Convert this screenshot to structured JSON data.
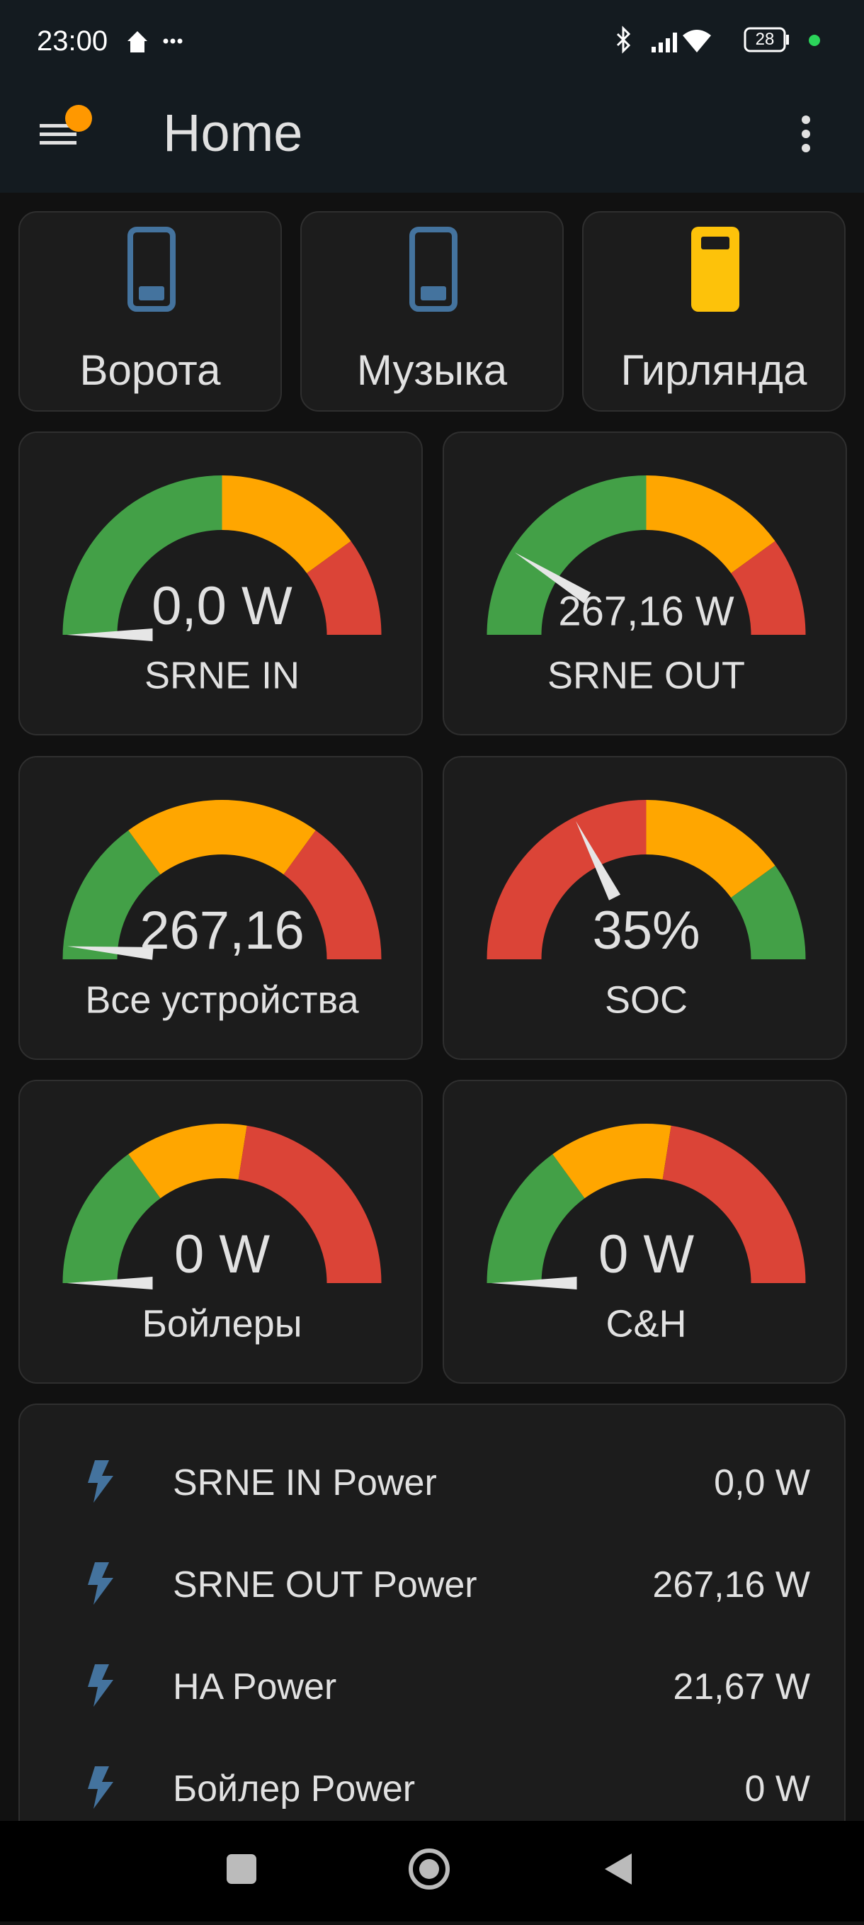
{
  "status_bar": {
    "time": "23:00",
    "battery": "28"
  },
  "header": {
    "title": "Home"
  },
  "buttons": [
    {
      "label": "Ворота"
    },
    {
      "label": "Музыка"
    },
    {
      "label": "Гирлянда"
    }
  ],
  "gauges": [
    {
      "name": "SRNE IN",
      "value": 0,
      "value_label": "0,0 W",
      "range": [
        0,
        2000
      ],
      "bands": [
        {
          "to": 1000,
          "color": "#43a047"
        },
        {
          "to": 1600,
          "color": "#ffa600"
        },
        {
          "to": 2000,
          "color": "#db4437"
        }
      ]
    },
    {
      "name": "SRNE OUT",
      "value": 267.16,
      "value_label": "267,16 W",
      "range": [
        0,
        1500
      ],
      "bands": [
        {
          "to": 750,
          "color": "#43a047"
        },
        {
          "to": 1200,
          "color": "#ffa600"
        },
        {
          "to": 1500,
          "color": "#db4437"
        }
      ]
    },
    {
      "name": "Все устройства",
      "value": 267.16,
      "value_label": "267,16",
      "range": [
        0,
        10000
      ],
      "bands": [
        {
          "to": 3000,
          "color": "#43a047"
        },
        {
          "to": 7000,
          "color": "#ffa600"
        },
        {
          "to": 10000,
          "color": "#db4437"
        }
      ]
    },
    {
      "name": "SOC",
      "value": 35,
      "value_label": "35%",
      "range": [
        0,
        100
      ],
      "bands": [
        {
          "to": 50,
          "color": "#db4437"
        },
        {
          "to": 80,
          "color": "#ffa600"
        },
        {
          "to": 100,
          "color": "#43a047"
        }
      ]
    },
    {
      "name": "Бойлеры",
      "value": 0,
      "value_label": "0 W",
      "range": [
        0,
        3000
      ],
      "bands": [
        {
          "to": 900,
          "color": "#43a047"
        },
        {
          "to": 1650,
          "color": "#ffa600"
        },
        {
          "to": 3000,
          "color": "#db4437"
        }
      ]
    },
    {
      "name": "C&H",
      "value": 0,
      "value_label": "0 W",
      "range": [
        0,
        3000
      ],
      "bands": [
        {
          "to": 900,
          "color": "#43a047"
        },
        {
          "to": 1650,
          "color": "#ffa600"
        },
        {
          "to": 3000,
          "color": "#db4437"
        }
      ]
    }
  ],
  "entities": [
    {
      "name": "SRNE IN Power",
      "state": "0,0 W"
    },
    {
      "name": "SRNE OUT Power",
      "state": "267,16 W"
    },
    {
      "name": "HA Power",
      "state": "21,67 W"
    },
    {
      "name": "Бойлер Power",
      "state": "0 W"
    }
  ]
}
